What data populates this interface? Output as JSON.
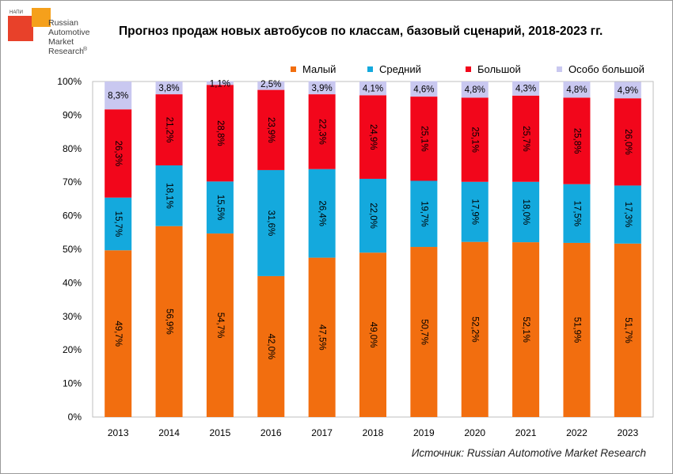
{
  "logo": {
    "small_caption": "НАПИ",
    "lines": [
      "Russian",
      "Automotive",
      "Market",
      "Research"
    ],
    "mark": "®",
    "colors": {
      "red": "#e8412a",
      "orange": "#f5a01b"
    }
  },
  "chart_data": {
    "type": "bar",
    "stacked": true,
    "title": "Прогноз продаж новых автобусов по классам,  базовый сценарий, 2018-2023 гг.",
    "xlabel": "",
    "ylabel": "",
    "ylim": [
      0,
      100
    ],
    "y_ticks": [
      "0%",
      "10%",
      "20%",
      "30%",
      "40%",
      "50%",
      "60%",
      "70%",
      "80%",
      "90%",
      "100%"
    ],
    "categories": [
      "2013",
      "2014",
      "2015",
      "2016",
      "2017",
      "2018",
      "2019",
      "2020",
      "2021",
      "2022",
      "2023"
    ],
    "series": [
      {
        "name": "Малый",
        "color": "#f26e0f",
        "values": [
          49.7,
          56.9,
          54.7,
          42.0,
          47.5,
          49.0,
          50.7,
          52.2,
          52.1,
          51.9,
          51.7
        ],
        "labels": [
          "49,7%",
          "56,9%",
          "54,7%",
          "42,0%",
          "47,5%",
          "49,0%",
          "50,7%",
          "52,2%",
          "52,1%",
          "51,9%",
          "51,7%"
        ]
      },
      {
        "name": "Средний",
        "color": "#14a9dd",
        "values": [
          15.7,
          18.1,
          15.5,
          31.6,
          26.4,
          22.0,
          19.7,
          17.9,
          18.0,
          17.5,
          17.3
        ],
        "labels": [
          "15,7%",
          "18,1%",
          "15,5%",
          "31,6%",
          "26,4%",
          "22,0%",
          "19,7%",
          "17,9%",
          "18,0%",
          "17,5%",
          "17,3%"
        ]
      },
      {
        "name": "Большой",
        "color": "#f2061b",
        "values": [
          26.3,
          21.2,
          28.8,
          23.9,
          22.3,
          24.9,
          25.1,
          25.1,
          25.7,
          25.8,
          26.0
        ],
        "labels": [
          "26,3%",
          "21,2%",
          "28,8%",
          "23,9%",
          "22,3%",
          "24,9%",
          "25,1%",
          "25,1%",
          "25,7%",
          "25,8%",
          "26,0%"
        ]
      },
      {
        "name": "Особо большой",
        "color": "#c9c8f0",
        "values": [
          8.3,
          3.8,
          1.1,
          2.5,
          3.9,
          4.1,
          4.6,
          4.8,
          4.3,
          4.8,
          4.9
        ],
        "labels": [
          "8,3%",
          "3,8%",
          "1,1%",
          "2,5%",
          "3,9%",
          "4,1%",
          "4,6%",
          "4,8%",
          "4,3%",
          "4,8%",
          "4,9%"
        ]
      }
    ],
    "legend_position": "top-right",
    "grid": false
  },
  "source": "Источник: Russian Automotive Market Research"
}
